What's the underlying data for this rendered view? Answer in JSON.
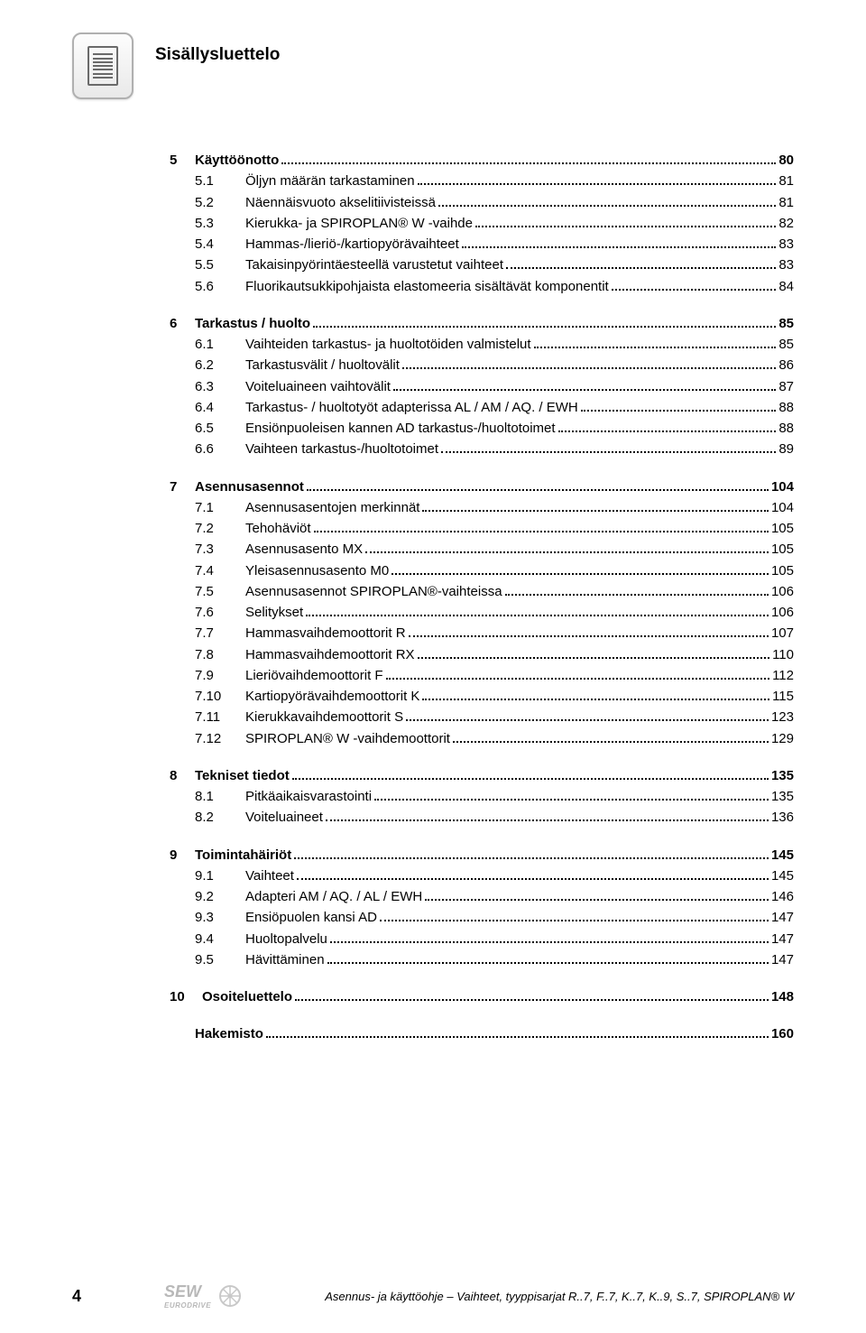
{
  "pageTitle": "Sisällysluettelo",
  "footer": {
    "pageNumber": "4",
    "docTitle": "Asennus- ja käyttöohje – Vaihteet, tyyppisarjat R..7, F..7, K..7, K..9, S..7, SPIROPLAN® W"
  },
  "sections": [
    {
      "num": "5",
      "title": "Käyttöönotto",
      "page": "80",
      "items": [
        {
          "num": "5.1",
          "title": "Öljyn määrän tarkastaminen",
          "page": "81"
        },
        {
          "num": "5.2",
          "title": "Näennäisvuoto akselitiivisteissä",
          "page": "81"
        },
        {
          "num": "5.3",
          "title": "Kierukka- ja SPIROPLAN® W -vaihde",
          "page": "82"
        },
        {
          "num": "5.4",
          "title": "Hammas-/lieriö-/kartiopyörävaihteet",
          "page": "83"
        },
        {
          "num": "5.5",
          "title": "Takaisinpyörintäesteellä varustetut vaihteet",
          "page": "83"
        },
        {
          "num": "5.6",
          "title": "Fluorikautsukkipohjaista elastomeeria sisältävät komponentit",
          "page": "84"
        }
      ]
    },
    {
      "num": "6",
      "title": "Tarkastus / huolto",
      "page": "85",
      "items": [
        {
          "num": "6.1",
          "title": "Vaihteiden tarkastus- ja huoltotöiden valmistelut",
          "page": "85"
        },
        {
          "num": "6.2",
          "title": "Tarkastusvälit / huoltovälit",
          "page": "86"
        },
        {
          "num": "6.3",
          "title": "Voiteluaineen vaihtovälit",
          "page": "87"
        },
        {
          "num": "6.4",
          "title": "Tarkastus- / huoltotyöt adapterissa AL / AM / AQ. / EWH",
          "page": "88"
        },
        {
          "num": "6.5",
          "title": "Ensiönpuoleisen kannen AD tarkastus-/huoltotoimet",
          "page": "88"
        },
        {
          "num": "6.6",
          "title": "Vaihteen tarkastus-/huoltotoimet",
          "page": "89"
        }
      ]
    },
    {
      "num": "7",
      "title": "Asennusasennot",
      "page": "104",
      "items": [
        {
          "num": "7.1",
          "title": "Asennusasentojen merkinnät",
          "page": "104"
        },
        {
          "num": "7.2",
          "title": "Tehohäviöt",
          "page": "105"
        },
        {
          "num": "7.3",
          "title": "Asennusasento MX",
          "page": "105"
        },
        {
          "num": "7.4",
          "title": "Yleisasennusasento M0",
          "page": "105"
        },
        {
          "num": "7.5",
          "title": "Asennusasennot SPIROPLAN®-vaihteissa",
          "page": "106"
        },
        {
          "num": "7.6",
          "title": "Selitykset",
          "page": "106"
        },
        {
          "num": "7.7",
          "title": "Hammasvaihdemoottorit R",
          "page": "107"
        },
        {
          "num": "7.8",
          "title": "Hammasvaihdemoottorit RX",
          "page": "110"
        },
        {
          "num": "7.9",
          "title": "Lieriövaihdemoottorit F",
          "page": "112"
        },
        {
          "num": "7.10",
          "title": "Kartiopyörävaihdemoottorit K",
          "page": "115"
        },
        {
          "num": "7.11",
          "title": "Kierukkavaihdemoottorit S",
          "page": "123"
        },
        {
          "num": "7.12",
          "title": "SPIROPLAN® W -vaihdemoottorit",
          "page": "129"
        }
      ]
    },
    {
      "num": "8",
      "title": "Tekniset tiedot",
      "page": "135",
      "items": [
        {
          "num": "8.1",
          "title": "Pitkäaikaisvarastointi",
          "page": "135"
        },
        {
          "num": "8.2",
          "title": "Voiteluaineet",
          "page": "136"
        }
      ]
    },
    {
      "num": "9",
      "title": "Toimintahäiriöt",
      "page": "145",
      "items": [
        {
          "num": "9.1",
          "title": "Vaihteet",
          "page": "145"
        },
        {
          "num": "9.2",
          "title": "Adapteri AM / AQ. / AL / EWH",
          "page": "146"
        },
        {
          "num": "9.3",
          "title": "Ensiöpuolen kansi AD",
          "page": "147"
        },
        {
          "num": "9.4",
          "title": "Huoltopalvelu",
          "page": "147"
        },
        {
          "num": "9.5",
          "title": "Hävittäminen",
          "page": "147"
        }
      ]
    },
    {
      "num": "10",
      "title": "Osoiteluettelo",
      "page": "148",
      "wide": true,
      "items": []
    },
    {
      "num": "",
      "title": "Hakemisto",
      "page": "160",
      "noNum": true,
      "items": []
    }
  ],
  "logo": {
    "brand": "SEW",
    "sub": "EURODRIVE"
  },
  "colors": {
    "iconBorder": "#b0b0b0",
    "iconStroke": "#6a6a6a",
    "logoGray": "#808080",
    "text": "#000000",
    "bg": "#ffffff"
  },
  "fonts": {
    "title_pt": 19,
    "row_pt": 15,
    "footer_pt": 13,
    "pagenum_pt": 18
  }
}
